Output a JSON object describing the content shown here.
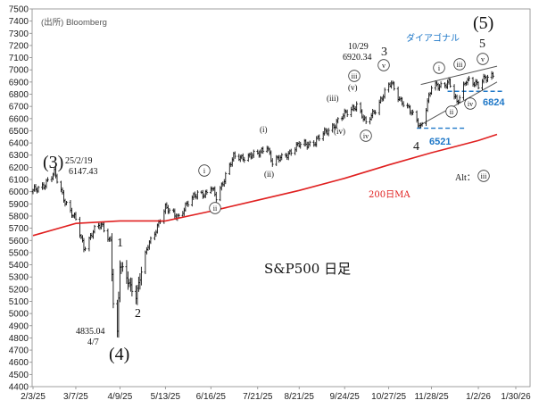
{
  "chart_data": {
    "type": "ohlc",
    "title": "S&P500 日足",
    "source": "(出所) Bloomberg",
    "ylim": [
      4400,
      7500
    ],
    "yticks": [
      4400,
      4500,
      4600,
      4700,
      4800,
      4900,
      5000,
      5100,
      5200,
      5300,
      5400,
      5500,
      5600,
      5700,
      5800,
      5900,
      6000,
      6100,
      6200,
      6300,
      6400,
      6500,
      6600,
      6700,
      6800,
      6900,
      7000,
      7100,
      7200,
      7300,
      7400,
      7500
    ],
    "x_dates": [
      "2/3/25",
      "3/7/25",
      "4/9/25",
      "5/13/25",
      "6/16/25",
      "7/21/25",
      "8/21/25",
      "9/24/25",
      "10/27/25",
      "11/28/25",
      "1/2/26",
      "1/30/26"
    ],
    "series": [
      {
        "name": "S&P500",
        "type": "ohlc",
        "anchors": [
          [
            "2/3/25",
            6000
          ],
          [
            "2/10/25",
            6050
          ],
          [
            "2/19/25",
            6147
          ],
          [
            "2/26/25",
            5950
          ],
          [
            "3/7/25",
            5760
          ],
          [
            "3/13/25",
            5540
          ],
          [
            "3/20/25",
            5680
          ],
          [
            "3/26/25",
            5720
          ],
          [
            "4/2/25",
            5600
          ],
          [
            "4/4/25",
            5100
          ],
          [
            "4/7/25",
            4835
          ],
          [
            "4/9/25",
            5390
          ],
          [
            "4/21/25",
            5150
          ],
          [
            "4/30/25",
            5560
          ],
          [
            "5/13/25",
            5860
          ],
          [
            "5/23/25",
            5800
          ],
          [
            "6/6/25",
            6000
          ],
          [
            "6/13/25",
            5975
          ],
          [
            "6/16/25",
            6030
          ],
          [
            "6/20/25",
            5960
          ],
          [
            "7/3/25",
            6280
          ],
          [
            "7/21/25",
            6300
          ],
          [
            "7/28/25",
            6390
          ],
          [
            "8/1/25",
            6230
          ],
          [
            "8/21/25",
            6380
          ],
          [
            "9/2/25",
            6410
          ],
          [
            "9/24/25",
            6630
          ],
          [
            "10/3/25",
            6720
          ],
          [
            "10/10/25",
            6550
          ],
          [
            "10/20/25",
            6740
          ],
          [
            "10/29/25",
            6890
          ],
          [
            "11/4/25",
            6770
          ],
          [
            "11/20/25",
            6540
          ],
          [
            "11/28/25",
            6850
          ],
          [
            "12/11/25",
            6900
          ],
          [
            "12/17/25",
            6720
          ],
          [
            "12/24/25",
            6930
          ],
          [
            "1/2/26",
            6860
          ],
          [
            "1/7/26",
            6945
          ],
          [
            "1/13/26",
            6960
          ]
        ]
      },
      {
        "name": "200日MA",
        "type": "line",
        "color": "#e02020",
        "points": [
          [
            "2/3/25",
            5640
          ],
          [
            "3/7/25",
            5740
          ],
          [
            "4/9/25",
            5760
          ],
          [
            "5/13/25",
            5760
          ],
          [
            "6/16/25",
            5840
          ],
          [
            "7/21/25",
            5930
          ],
          [
            "8/21/25",
            6010
          ],
          [
            "9/24/25",
            6110
          ],
          [
            "10/27/25",
            6220
          ],
          [
            "11/28/25",
            6320
          ],
          [
            "1/2/26",
            6420
          ],
          [
            "1/16/26",
            6470
          ]
        ]
      }
    ],
    "annotations": {
      "wave_3_big": "(3)",
      "wave_4_big": "(4)",
      "wave_5_big": "(5)",
      "peak_label_date": "25/2/19",
      "peak_label_value": "6147.43",
      "low_label_value": "4835.04",
      "low_label_date": "4/7",
      "w1": "1",
      "w2": "2",
      "w3": "3",
      "w4": "4",
      "w5": "5",
      "high_label_date": "10/29",
      "high_label_value": "6920.34",
      "diagonal": "ダイアゴナル",
      "level_6824": "6824",
      "level_6521": "6521",
      "alt": "Alt：",
      "ma_label": "200日MA"
    },
    "levels": [
      6824,
      6521
    ],
    "colors": {
      "price": "#111111",
      "ma": "#e02020",
      "level": "#1f78c8",
      "diag": "#1f78c8"
    }
  }
}
